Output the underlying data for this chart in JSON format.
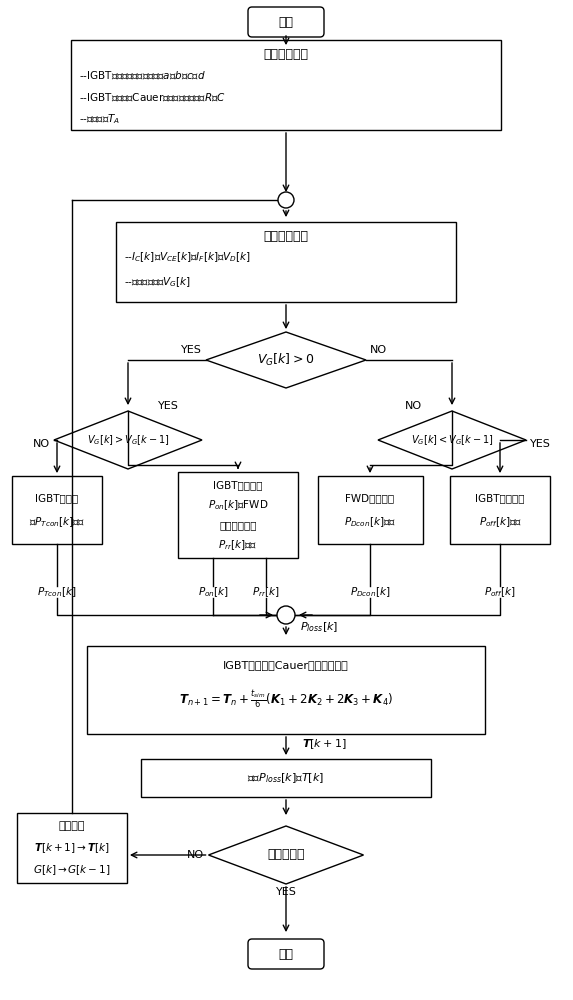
{
  "bg_color": "#ffffff",
  "border_color": "#000000",
  "text_color": "#000000",
  "start_text": "开始",
  "end_text": "结束",
  "input_title": "输入以下数据",
  "input_line1": "--IGBT模块损耗模型拟合参数$a$、$b$、$c$、$d$",
  "input_line2": "--IGBT模块等效Cauer传热网络模型参数$R$、$C$",
  "input_line3": "--环境温度$T_A$",
  "measure_title": "测量以下数据",
  "measure_line1": "--$I_C$[$k$]、$V_{CE}$[$k$]、$I_F$[$k$]、$V_D$[$k$]",
  "measure_line2": "--门极触发信号$V_G$[$k$]",
  "d1_text": "$V_G[k]>0$",
  "d2l_text": "$V_G[k]>V_G[k-1]$",
  "d2r_text": "$V_G[k]<V_G[k-1]$",
  "box1_l1": "IGBT通态损",
  "box1_l2": "耗$P_{Tcon}[k]$计算",
  "box2_l1": "IGBT开通损耗",
  "box2_l2": "$P_{on}[k]$和FWD",
  "box2_l3": "反向恢复损耗",
  "box2_l4": "$P_{rr}[k]$计算",
  "box3_l1": "FWD通态损耗",
  "box3_l2": "$P_{Dcon}[k]$计算",
  "box4_l1": "IGBT关断损耗",
  "box4_l2": "$P_{off}[k]$计算",
  "label_ptcon": "$P_{Tcon}[k]$",
  "label_pon": "$P_{on}[k]$",
  "label_prr": "$P_{rr}[k]$",
  "label_pdcon": "$P_{Dcon}[k]$",
  "label_poff": "$P_{off}[k]$",
  "label_ploss": "$P_{loss}[k]$",
  "cauer_l1": "IGBT模块等效Cauer传热网络模型",
  "cauer_l2": "$\\boldsymbol{T}_{n+1}=\\boldsymbol{T}_n+\\frac{t_{sim}}{6}(\\boldsymbol{K}_1+2\\boldsymbol{K}_2+2\\boldsymbol{K}_3+\\boldsymbol{K}_4)$",
  "tk1_label": "$\\boldsymbol{T}[k+1]$",
  "output_text": "输出$P_{loss}[k]$和$T[k]$",
  "accuracy_text": "精度要求？",
  "update_l1": "更新参数",
  "update_l2": "$\\boldsymbol{T}[k+1]\\rightarrow\\boldsymbol{T}[k]$",
  "update_l3": "$G[k]\\rightarrow G[k-1]$",
  "yes": "YES",
  "no": "NO"
}
